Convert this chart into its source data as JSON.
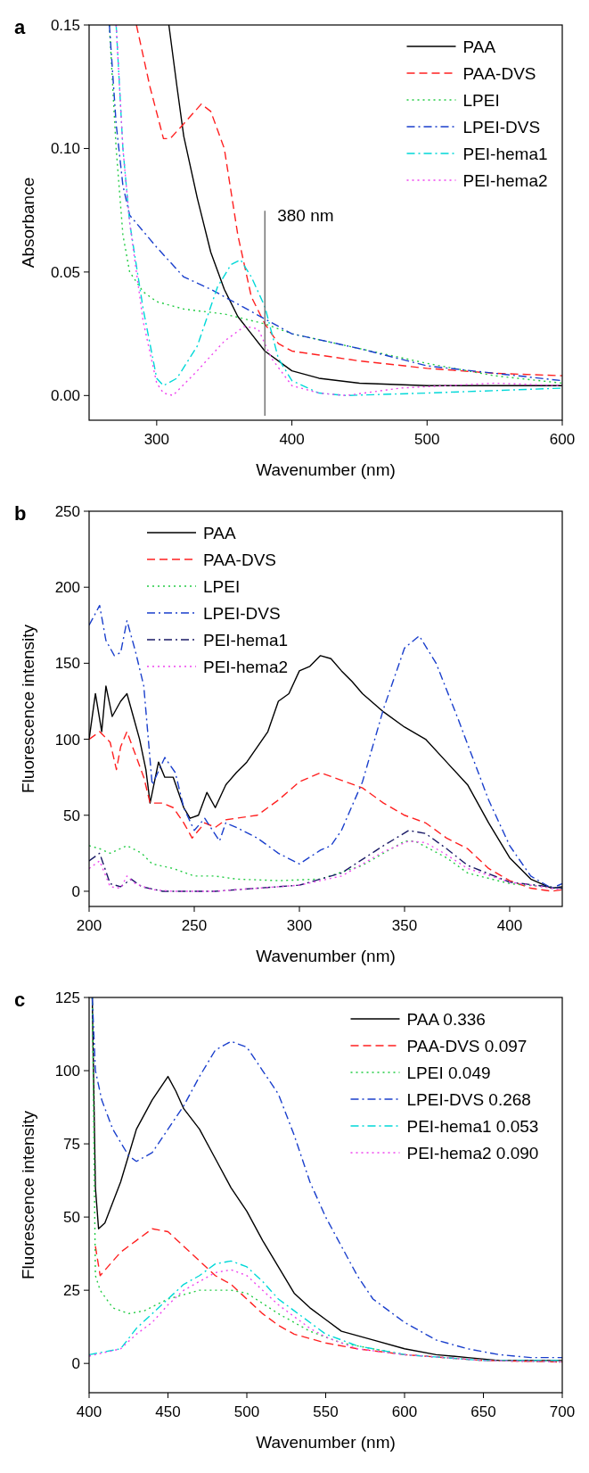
{
  "chart_data": [
    {
      "type": "line",
      "title": "a",
      "xlabel": "Wavenumber (nm)",
      "ylabel": "Absorbance",
      "xlim": [
        250,
        600
      ],
      "xticks": [
        300,
        400,
        500,
        600
      ],
      "ylim": [
        -0.01,
        0.15
      ],
      "yticks": [
        {
          "value": 0,
          "label": "0.00"
        },
        {
          "value": 0.05,
          "label": "0.05"
        },
        {
          "value": 0.1,
          "label": "0.10"
        },
        {
          "value": 0.15,
          "label": "0.15"
        }
      ],
      "legend": "top right",
      "grid": false,
      "ref_lines": [
        {
          "axis": "x",
          "value": 380,
          "label": "380 nm",
          "color": "#555555"
        }
      ],
      "series": [
        {
          "name": "PAA",
          "color": "#000000",
          "line_style": "solid",
          "x": [
            309,
            315,
            320,
            330,
            340,
            350,
            360,
            370,
            380,
            400,
            420,
            450,
            500,
            550,
            600
          ],
          "values": [
            0.15,
            0.125,
            0.105,
            0.08,
            0.058,
            0.043,
            0.032,
            0.025,
            0.018,
            0.01,
            0.007,
            0.005,
            0.004,
            0.004,
            0.004
          ]
        },
        {
          "name": "PAA-DVS",
          "color": "#ff2020",
          "line_style": "dashed",
          "x": [
            285,
            295,
            305,
            310,
            320,
            333,
            340,
            350,
            360,
            370,
            380,
            390,
            400,
            450,
            500,
            550,
            600
          ],
          "values": [
            0.15,
            0.125,
            0.104,
            0.104,
            0.11,
            0.118,
            0.115,
            0.1,
            0.065,
            0.04,
            0.029,
            0.021,
            0.018,
            0.014,
            0.011,
            0.009,
            0.008
          ]
        },
        {
          "name": "LPEI",
          "color": "#22cc44",
          "line_style": "dotted",
          "x": [
            265,
            270,
            275,
            280,
            290,
            300,
            320,
            350,
            380,
            400,
            450,
            500,
            550,
            600
          ],
          "values": [
            0.15,
            0.1,
            0.065,
            0.05,
            0.042,
            0.038,
            0.035,
            0.033,
            0.029,
            0.025,
            0.019,
            0.013,
            0.008,
            0.005
          ]
        },
        {
          "name": "LPEI-DVS",
          "color": "#1a3fcc",
          "line_style": "dashdot",
          "x": [
            265,
            270,
            275,
            280,
            300,
            320,
            340,
            360,
            380,
            400,
            450,
            500,
            550,
            600
          ],
          "values": [
            0.15,
            0.11,
            0.085,
            0.073,
            0.06,
            0.048,
            0.043,
            0.037,
            0.031,
            0.025,
            0.019,
            0.012,
            0.009,
            0.006
          ]
        },
        {
          "name": "PEI-hema1",
          "color": "#00d8d8",
          "line_style": "dashdot",
          "x": [
            270,
            275,
            280,
            290,
            300,
            305,
            315,
            330,
            345,
            355,
            362,
            370,
            380,
            390,
            400,
            420,
            440,
            500,
            550,
            600
          ],
          "values": [
            0.15,
            0.1,
            0.07,
            0.035,
            0.007,
            0.004,
            0.007,
            0.02,
            0.044,
            0.053,
            0.055,
            0.048,
            0.036,
            0.015,
            0.006,
            0.001,
            0,
            0.001,
            0.002,
            0.003
          ]
        },
        {
          "name": "PEI-hema2",
          "color": "#ee44ee",
          "line_style": "dotted",
          "x": [
            270,
            275,
            280,
            290,
            300,
            305,
            312,
            330,
            350,
            365,
            375,
            385,
            400,
            420,
            440,
            480,
            550,
            600
          ],
          "values": [
            0.15,
            0.1,
            0.07,
            0.03,
            0.005,
            0.001,
            0,
            0.01,
            0.022,
            0.028,
            0.027,
            0.015,
            0.004,
            0.001,
            0,
            0.003,
            0.005,
            0.004
          ]
        }
      ]
    },
    {
      "type": "line",
      "title": "b",
      "xlabel": "Wavenumber (nm)",
      "ylabel": "Fluorescence intensity",
      "xlim": [
        200,
        425
      ],
      "xticks": [
        200,
        250,
        300,
        350,
        400
      ],
      "ylim": [
        -10,
        250
      ],
      "yticks": [
        0,
        50,
        100,
        150,
        200,
        250
      ],
      "legend": "top left",
      "grid": false,
      "series": [
        {
          "name": "PAA",
          "color": "#000000",
          "line_style": "solid",
          "x": [
            200,
            203,
            206,
            208,
            211,
            215,
            218,
            221,
            224,
            227,
            229,
            233,
            236,
            240,
            245,
            248,
            252,
            256,
            260,
            265,
            270,
            275,
            280,
            285,
            290,
            295,
            300,
            305,
            310,
            315,
            320,
            325,
            330,
            340,
            350,
            360,
            370,
            380,
            390,
            400,
            410,
            420,
            425
          ],
          "values": [
            100,
            130,
            105,
            135,
            115,
            125,
            130,
            115,
            100,
            80,
            58,
            85,
            75,
            75,
            55,
            48,
            50,
            65,
            55,
            70,
            78,
            85,
            95,
            105,
            125,
            130,
            145,
            148,
            155,
            153,
            145,
            138,
            130,
            118,
            108,
            100,
            85,
            70,
            45,
            22,
            8,
            2,
            3
          ]
        },
        {
          "name": "PAA-DVS",
          "color": "#ff2020",
          "line_style": "dashed",
          "x": [
            200,
            205,
            210,
            213,
            215,
            218,
            222,
            226,
            229,
            235,
            240,
            245,
            249,
            255,
            260,
            265,
            270,
            280,
            290,
            300,
            310,
            320,
            330,
            340,
            350,
            360,
            370,
            380,
            390,
            400,
            410,
            420,
            425
          ],
          "values": [
            100,
            105,
            98,
            80,
            95,
            105,
            90,
            75,
            58,
            58,
            55,
            45,
            35,
            45,
            42,
            47,
            48,
            50,
            60,
            72,
            78,
            73,
            68,
            58,
            50,
            45,
            35,
            28,
            15,
            7,
            2,
            0,
            1
          ]
        },
        {
          "name": "LPEI",
          "color": "#22cc44",
          "line_style": "dotted",
          "x": [
            200,
            205,
            210,
            218,
            225,
            230,
            240,
            250,
            260,
            270,
            290,
            310,
            330,
            350,
            355,
            370,
            380,
            400,
            425
          ],
          "values": [
            30,
            28,
            25,
            30,
            25,
            18,
            15,
            10,
            10,
            8,
            7,
            8,
            17,
            33,
            33,
            22,
            12,
            5,
            2
          ]
        },
        {
          "name": "LPEI-DVS",
          "color": "#1a3fcc",
          "line_style": "dashdot",
          "x": [
            200,
            205,
            208,
            212,
            215,
            218,
            222,
            226,
            230,
            236,
            241,
            245,
            250,
            255,
            262,
            265,
            270,
            280,
            290,
            300,
            310,
            315,
            320,
            330,
            340,
            350,
            357,
            365,
            375,
            390,
            400,
            410,
            420,
            425
          ],
          "values": [
            175,
            188,
            165,
            155,
            157,
            178,
            158,
            135,
            70,
            88,
            78,
            55,
            40,
            48,
            33,
            45,
            42,
            35,
            25,
            18,
            27,
            30,
            40,
            72,
            120,
            160,
            168,
            150,
            115,
            60,
            30,
            10,
            2,
            5
          ]
        },
        {
          "name": "PEI-hema1",
          "color": "#1a1a66",
          "line_style": "dashdot",
          "x": [
            200,
            205,
            210,
            215,
            220,
            225,
            235,
            260,
            280,
            300,
            320,
            340,
            352,
            360,
            370,
            380,
            400,
            425
          ],
          "values": [
            20,
            25,
            5,
            3,
            8,
            3,
            0,
            0,
            2,
            4,
            12,
            30,
            40,
            38,
            28,
            17,
            6,
            2
          ]
        },
        {
          "name": "PEI-hema2",
          "color": "#ee44ee",
          "line_style": "dotted",
          "x": [
            200,
            205,
            210,
            215,
            218,
            222,
            230,
            240,
            260,
            280,
            300,
            320,
            340,
            352,
            360,
            370,
            380,
            400,
            425
          ],
          "values": [
            15,
            20,
            3,
            2,
            10,
            5,
            1,
            0,
            0,
            2,
            4,
            10,
            26,
            33,
            32,
            24,
            15,
            6,
            1
          ]
        }
      ]
    },
    {
      "type": "line",
      "title": "c",
      "xlabel": "Wavenumber (nm)",
      "ylabel": "Fluorescence intensity",
      "xlim": [
        400,
        700
      ],
      "xticks": [
        400,
        450,
        500,
        550,
        600,
        650,
        700
      ],
      "ylim": [
        -10,
        125
      ],
      "yticks": [
        0,
        25,
        50,
        75,
        100,
        125
      ],
      "legend": "top right",
      "grid": false,
      "series": [
        {
          "name": "PAA 0.336",
          "color": "#000000",
          "line_style": "solid",
          "x": [
            402,
            404,
            406,
            410,
            420,
            430,
            440,
            450,
            455,
            460,
            470,
            480,
            490,
            500,
            510,
            520,
            530,
            540,
            550,
            560,
            580,
            600,
            620,
            640,
            660,
            700
          ],
          "values": [
            125,
            60,
            46,
            48,
            62,
            80,
            90,
            98,
            93,
            87,
            80,
            70,
            60,
            52,
            42,
            33,
            24,
            19,
            15,
            11,
            8,
            5,
            3,
            2,
            1,
            1
          ]
        },
        {
          "name": "PAA-DVS 0.097",
          "color": "#ff2020",
          "line_style": "dashed",
          "x": [
            404,
            407,
            420,
            430,
            440,
            450,
            460,
            470,
            480,
            490,
            500,
            510,
            520,
            530,
            550,
            570,
            600,
            650,
            700
          ],
          "values": [
            40,
            30,
            38,
            42,
            46,
            45,
            40,
            35,
            30,
            27,
            22,
            17,
            13,
            10,
            7,
            5,
            3,
            1,
            0.5
          ]
        },
        {
          "name": "LPEI 0.049",
          "color": "#22cc44",
          "line_style": "dotted",
          "x": [
            402,
            404,
            407,
            415,
            425,
            435,
            450,
            470,
            490,
            500,
            520,
            540,
            560,
            600,
            650,
            700
          ],
          "values": [
            125,
            30,
            25,
            19,
            17,
            18,
            22,
            25,
            25,
            24,
            17,
            11,
            7,
            3,
            1,
            0.5
          ]
        },
        {
          "name": "LPEI-DVS 0.268",
          "color": "#1a3fcc",
          "line_style": "dashdot",
          "x": [
            402,
            404,
            408,
            415,
            425,
            430,
            440,
            450,
            460,
            470,
            480,
            490,
            500,
            510,
            520,
            530,
            540,
            550,
            560,
            570,
            580,
            590,
            600,
            620,
            640,
            660,
            680,
            700
          ],
          "values": [
            125,
            100,
            90,
            80,
            71,
            69,
            72,
            80,
            88,
            98,
            107,
            110,
            108,
            100,
            92,
            78,
            62,
            50,
            40,
            30,
            22,
            18,
            14,
            8,
            5,
            3,
            2,
            2
          ]
        },
        {
          "name": "PEI-hema1 0.053",
          "color": "#00d8d8",
          "line_style": "dashdot",
          "x": [
            400,
            420,
            430,
            440,
            450,
            460,
            470,
            480,
            490,
            500,
            510,
            520,
            530,
            540,
            550,
            570,
            600,
            650,
            700
          ],
          "values": [
            3,
            5,
            12,
            17,
            22,
            27,
            30,
            34,
            35,
            33,
            28,
            22,
            18,
            14,
            10,
            6,
            3,
            1,
            1
          ]
        },
        {
          "name": "PEI-hema2 0.090",
          "color": "#ee44ee",
          "line_style": "dotted",
          "x": [
            400,
            420,
            430,
            440,
            450,
            460,
            470,
            480,
            490,
            500,
            510,
            520,
            530,
            540,
            550,
            570,
            600,
            650,
            700
          ],
          "values": [
            2.5,
            5,
            10,
            14,
            20,
            25,
            28,
            31,
            32,
            30,
            25,
            20,
            16,
            12,
            9,
            5,
            3,
            1,
            0.5
          ]
        }
      ]
    }
  ]
}
